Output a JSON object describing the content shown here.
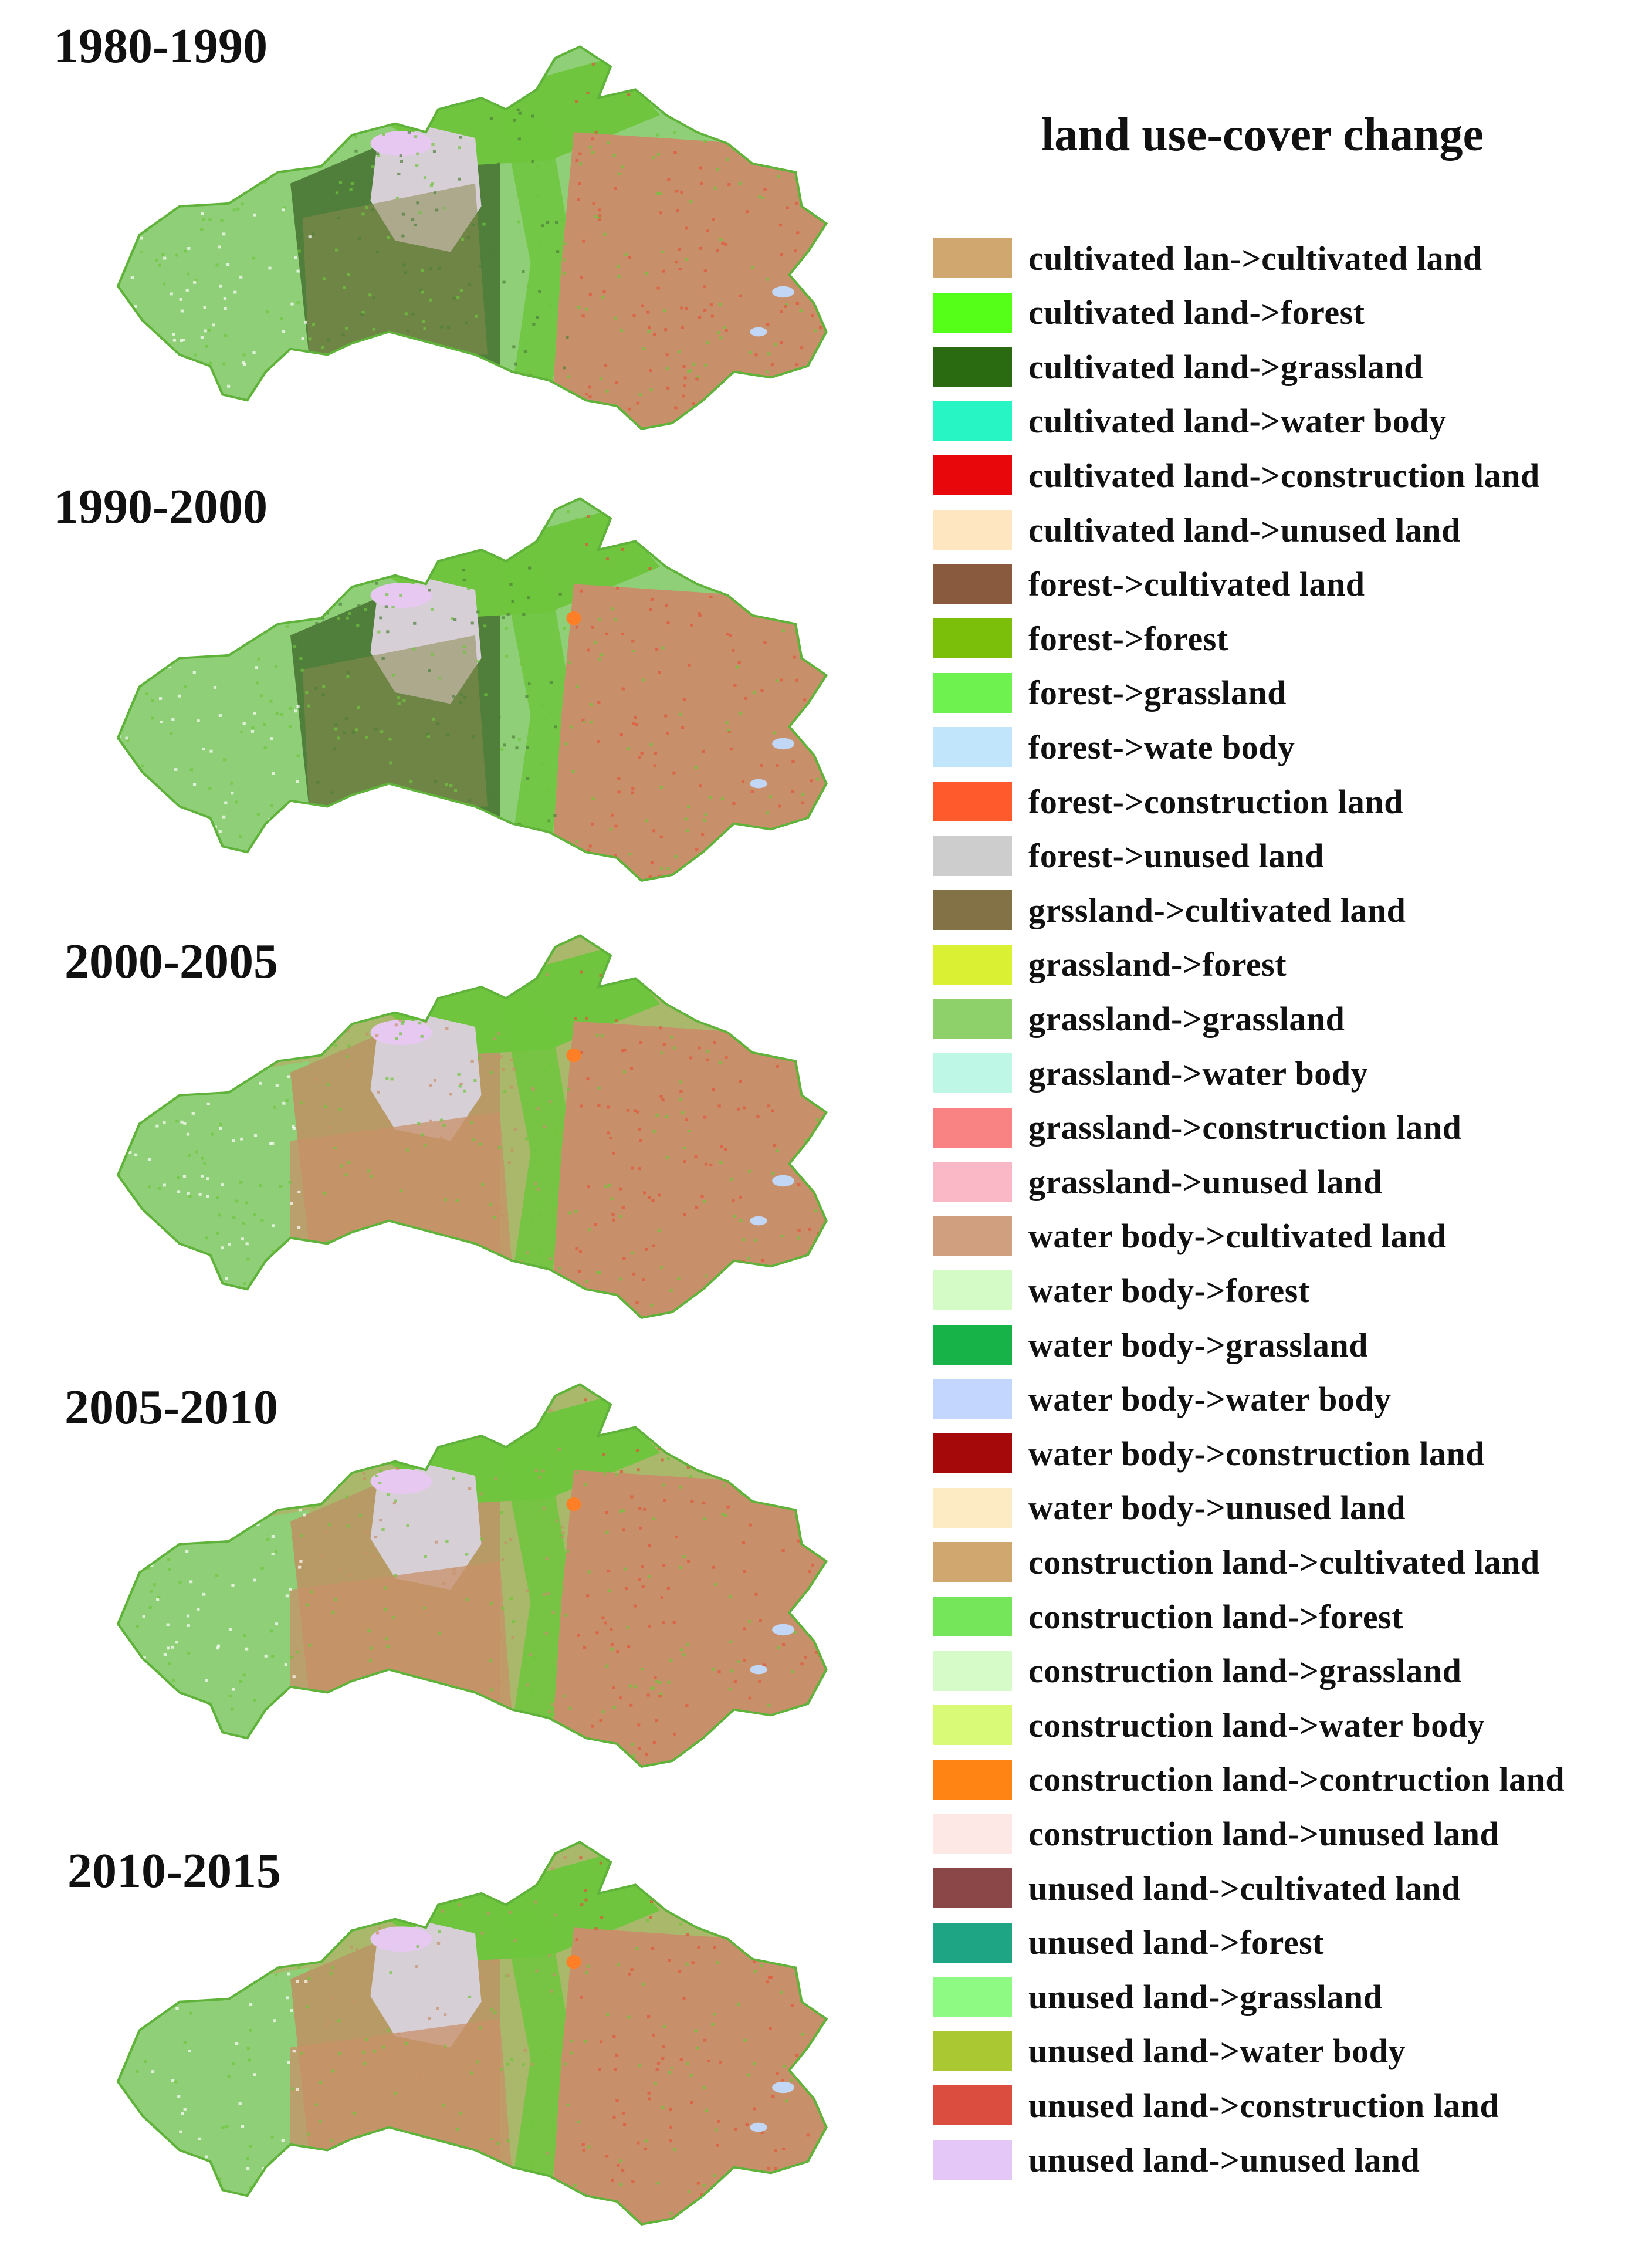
{
  "legend_title": "land use-cover change",
  "periods": [
    {
      "label": "1980-1990",
      "scheme": "early"
    },
    {
      "label": "1990-2000",
      "scheme": "early"
    },
    {
      "label": "2000-2005",
      "scheme": "late"
    },
    {
      "label": "2005-2010",
      "scheme": "late"
    },
    {
      "label": "2010-2015",
      "scheme": "late"
    }
  ],
  "map_colors": {
    "cultivated": "#c8906a",
    "red_speck": "#e0553a",
    "forest_green": "#6fc53d",
    "grass_light": "#8fcf78",
    "dark_green": "#4f7f3a",
    "olive_brown": "#8a8a50",
    "unused_grey": "#d6cfd6",
    "unused_pink": "#e7c8f0",
    "water": "#c2d6f5",
    "construction": "#ff7f27"
  },
  "legend": [
    {
      "label": "cultivated lan->cultivated land",
      "color": "#cfa76f"
    },
    {
      "label": "cultivated land->forest",
      "color": "#56ff17"
    },
    {
      "label": "cultivated land->grassland",
      "color": "#2a6b12"
    },
    {
      "label": "cultivated land->water body",
      "color": "#27f5c4"
    },
    {
      "label": "cultivated land->construction land",
      "color": "#e8080b"
    },
    {
      "label": "cultivated land->unused land",
      "color": "#fde6c0"
    },
    {
      "label": "forest->cultivated land",
      "color": "#8a5a3f"
    },
    {
      "label": "forest->forest",
      "color": "#7cbf0b"
    },
    {
      "label": "forest->grassland",
      "color": "#6ef250"
    },
    {
      "label": "forest->wate body",
      "color": "#c1e6fc"
    },
    {
      "label": "forest->construction land",
      "color": "#ff5a2c"
    },
    {
      "label": "forest->unused land",
      "color": "#cdcdcd"
    },
    {
      "label": "grssland->cultivated land",
      "color": "#837246"
    },
    {
      "label": "grassland->forest",
      "color": "#d9f033"
    },
    {
      "label": "grassland->grassland",
      "color": "#8ed16a"
    },
    {
      "label": "grassland->water body",
      "color": "#bff7e6"
    },
    {
      "label": "grassland->construction land",
      "color": "#f98383"
    },
    {
      "label": "grassland->unused land",
      "color": "#fab8c6"
    },
    {
      "label": "water body->cultivated land",
      "color": "#cf9f80"
    },
    {
      "label": "water body->forest",
      "color": "#d4fbc6"
    },
    {
      "label": "water body->grassland",
      "color": "#17b248"
    },
    {
      "label": "water body->water body",
      "color": "#c2d6fe"
    },
    {
      "label": "water body->construction land",
      "color": "#a50909"
    },
    {
      "label": "water body->unused land",
      "color": "#fdebc4"
    },
    {
      "label": "construction land->cultivated land",
      "color": "#cfa76f"
    },
    {
      "label": "construction land->forest",
      "color": "#75e65a"
    },
    {
      "label": "construction land->grassland",
      "color": "#d7fbc8"
    },
    {
      "label": "construction land->water body",
      "color": "#d9fa77"
    },
    {
      "label": "construction land->contruction land",
      "color": "#ff8413"
    },
    {
      "label": "construction land->unused land",
      "color": "#fde8e6"
    },
    {
      "label": "unused land->cultivated land",
      "color": "#8b4747"
    },
    {
      "label": "unused land->forest",
      "color": "#1ea584"
    },
    {
      "label": "unused land->grassland",
      "color": "#8efa84"
    },
    {
      "label": "unused land->water body",
      "color": "#a9c832"
    },
    {
      "label": "unused land->construction land",
      "color": "#db4d3e"
    },
    {
      "label": "unused land->unused land",
      "color": "#e4c6f7"
    }
  ]
}
